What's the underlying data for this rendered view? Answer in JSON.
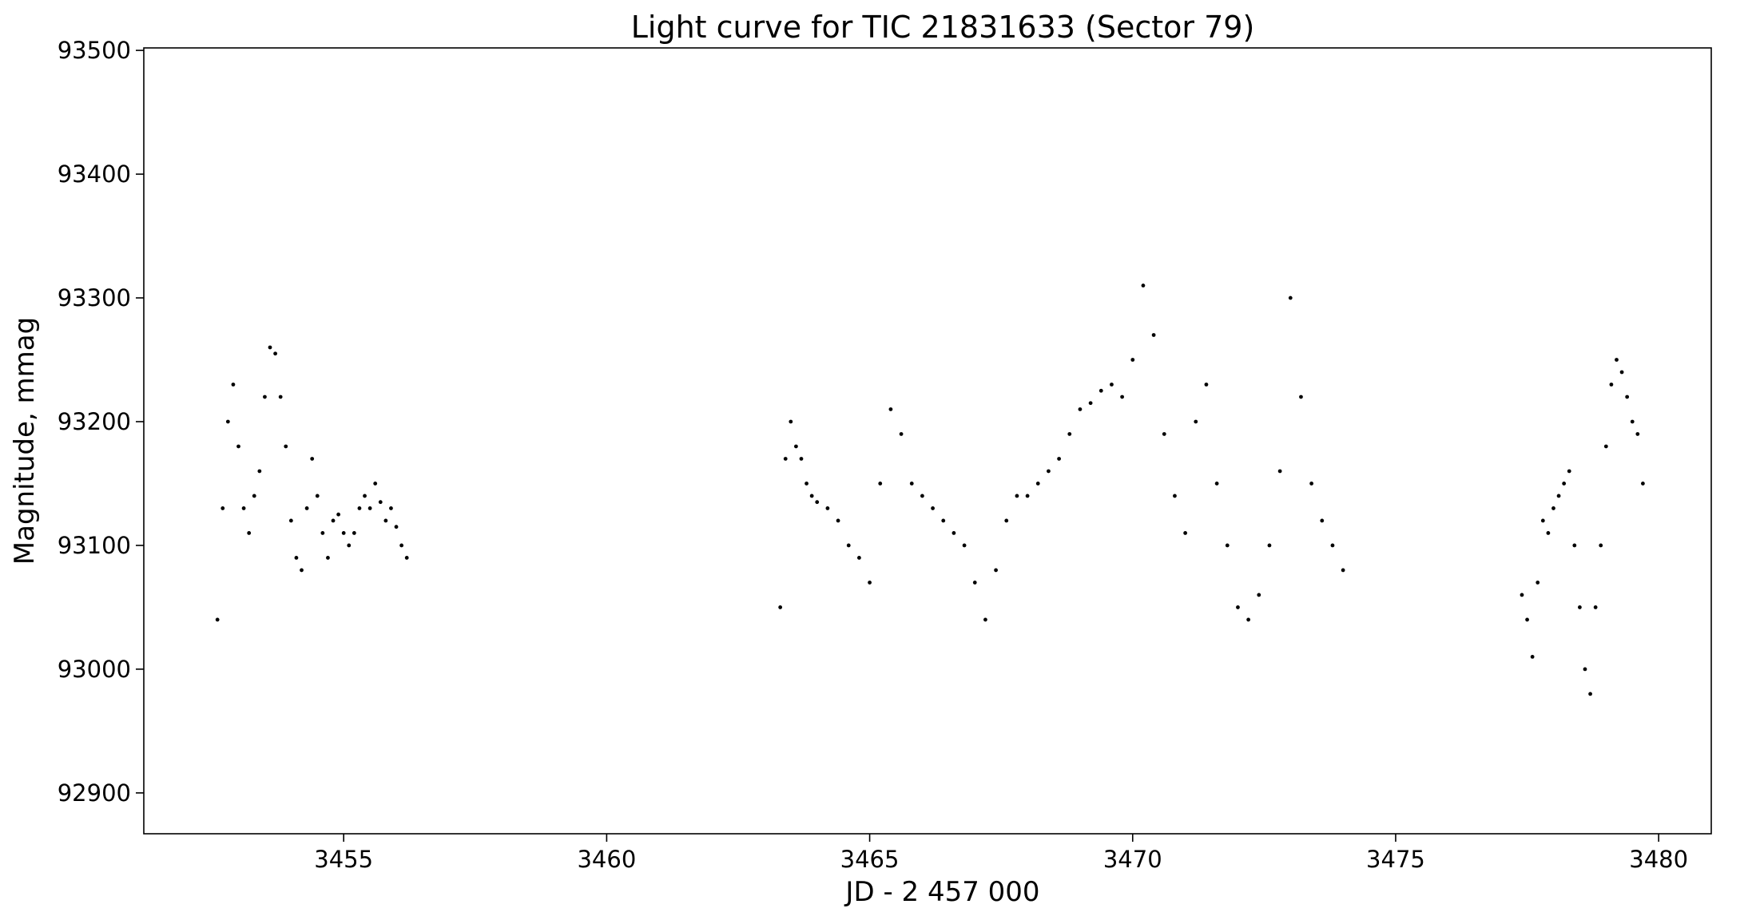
{
  "chart_data": {
    "type": "scatter",
    "title": "Light curve for TIC 21831633 (Sector 79)",
    "xlabel": "JD - 2 457 000",
    "ylabel": "Magnitude, mmag",
    "xlim": [
      3451.2,
      3481.0
    ],
    "ylim": [
      92867,
      93502
    ],
    "xticks": [
      3455,
      3460,
      3465,
      3470,
      3475,
      3480
    ],
    "xtick_labels": [
      "3455",
      "3460",
      "3465",
      "3470",
      "3475",
      "3480"
    ],
    "yticks": [
      92900,
      93000,
      93100,
      93200,
      93300,
      93400,
      93500
    ],
    "ytick_labels": [
      "92900",
      "93000",
      "93100",
      "93200",
      "93300",
      "93400",
      "93500"
    ],
    "grid": false,
    "marker_color": "#000000",
    "series": [
      {
        "x": [
          3452.6,
          3452.7,
          3452.8,
          3452.9,
          3453.0,
          3453.1,
          3453.2,
          3453.3,
          3453.4,
          3453.5,
          3453.6,
          3453.7,
          3453.8,
          3453.9,
          3454.0,
          3454.1,
          3454.2,
          3454.3,
          3454.4,
          3454.5,
          3454.6,
          3454.7,
          3454.8,
          3454.9,
          3455.0,
          3455.1,
          3455.2,
          3455.3,
          3455.4,
          3455.5,
          3455.6,
          3455.7,
          3455.8,
          3455.9,
          3456.0,
          3456.1,
          3456.2,
          3463.3,
          3463.4,
          3463.5,
          3463.6,
          3463.7,
          3463.8,
          3463.9,
          3464.0,
          3464.2,
          3464.4,
          3464.6,
          3464.8,
          3465.0,
          3465.2,
          3465.4,
          3465.6,
          3465.8,
          3466.0,
          3466.2,
          3466.4,
          3466.6,
          3466.8,
          3467.0,
          3467.2,
          3467.4,
          3467.6,
          3467.8,
          3468.0,
          3468.2,
          3468.4,
          3468.6,
          3468.8,
          3469.0,
          3469.2,
          3469.4,
          3469.6,
          3469.8,
          3470.0,
          3470.2,
          3470.4,
          3470.6,
          3470.8,
          3471.0,
          3471.2,
          3471.4,
          3471.6,
          3471.8,
          3472.0,
          3472.2,
          3472.4,
          3472.6,
          3472.8,
          3473.0,
          3473.2,
          3473.4,
          3473.6,
          3473.8,
          3474.0,
          3477.4,
          3477.5,
          3477.6,
          3477.7,
          3477.8,
          3477.9,
          3478.0,
          3478.1,
          3478.2,
          3478.3,
          3478.4,
          3478.5,
          3478.6,
          3478.7,
          3478.8,
          3478.9,
          3479.0,
          3479.1,
          3479.2,
          3479.3,
          3479.4,
          3479.5,
          3479.6,
          3479.7
        ],
        "y": [
          93040,
          93130,
          93200,
          93230,
          93180,
          93130,
          93110,
          93140,
          93160,
          93220,
          93260,
          93255,
          93220,
          93180,
          93120,
          93090,
          93080,
          93130,
          93170,
          93140,
          93110,
          93090,
          93120,
          93125,
          93110,
          93100,
          93110,
          93130,
          93140,
          93130,
          93150,
          93135,
          93120,
          93130,
          93115,
          93100,
          93090,
          93050,
          93170,
          93200,
          93180,
          93170,
          93150,
          93140,
          93135,
          93130,
          93120,
          93100,
          93090,
          93070,
          93150,
          93210,
          93190,
          93150,
          93140,
          93130,
          93120,
          93110,
          93100,
          93070,
          93040,
          93080,
          93120,
          93140,
          93140,
          93150,
          93160,
          93170,
          93190,
          93210,
          93215,
          93225,
          93230,
          93220,
          93250,
          93310,
          93270,
          93190,
          93140,
          93110,
          93200,
          93230,
          93150,
          93100,
          93050,
          93040,
          93060,
          93100,
          93160,
          93300,
          93220,
          93150,
          93120,
          93100,
          93080,
          93060,
          93040,
          93010,
          93070,
          93120,
          93110,
          93130,
          93140,
          93150,
          93160,
          93100,
          93050,
          93000,
          92980,
          93050,
          93100,
          93180,
          93230,
          93250,
          93240,
          93220,
          93200,
          93190,
          93150
        ]
      }
    ]
  }
}
